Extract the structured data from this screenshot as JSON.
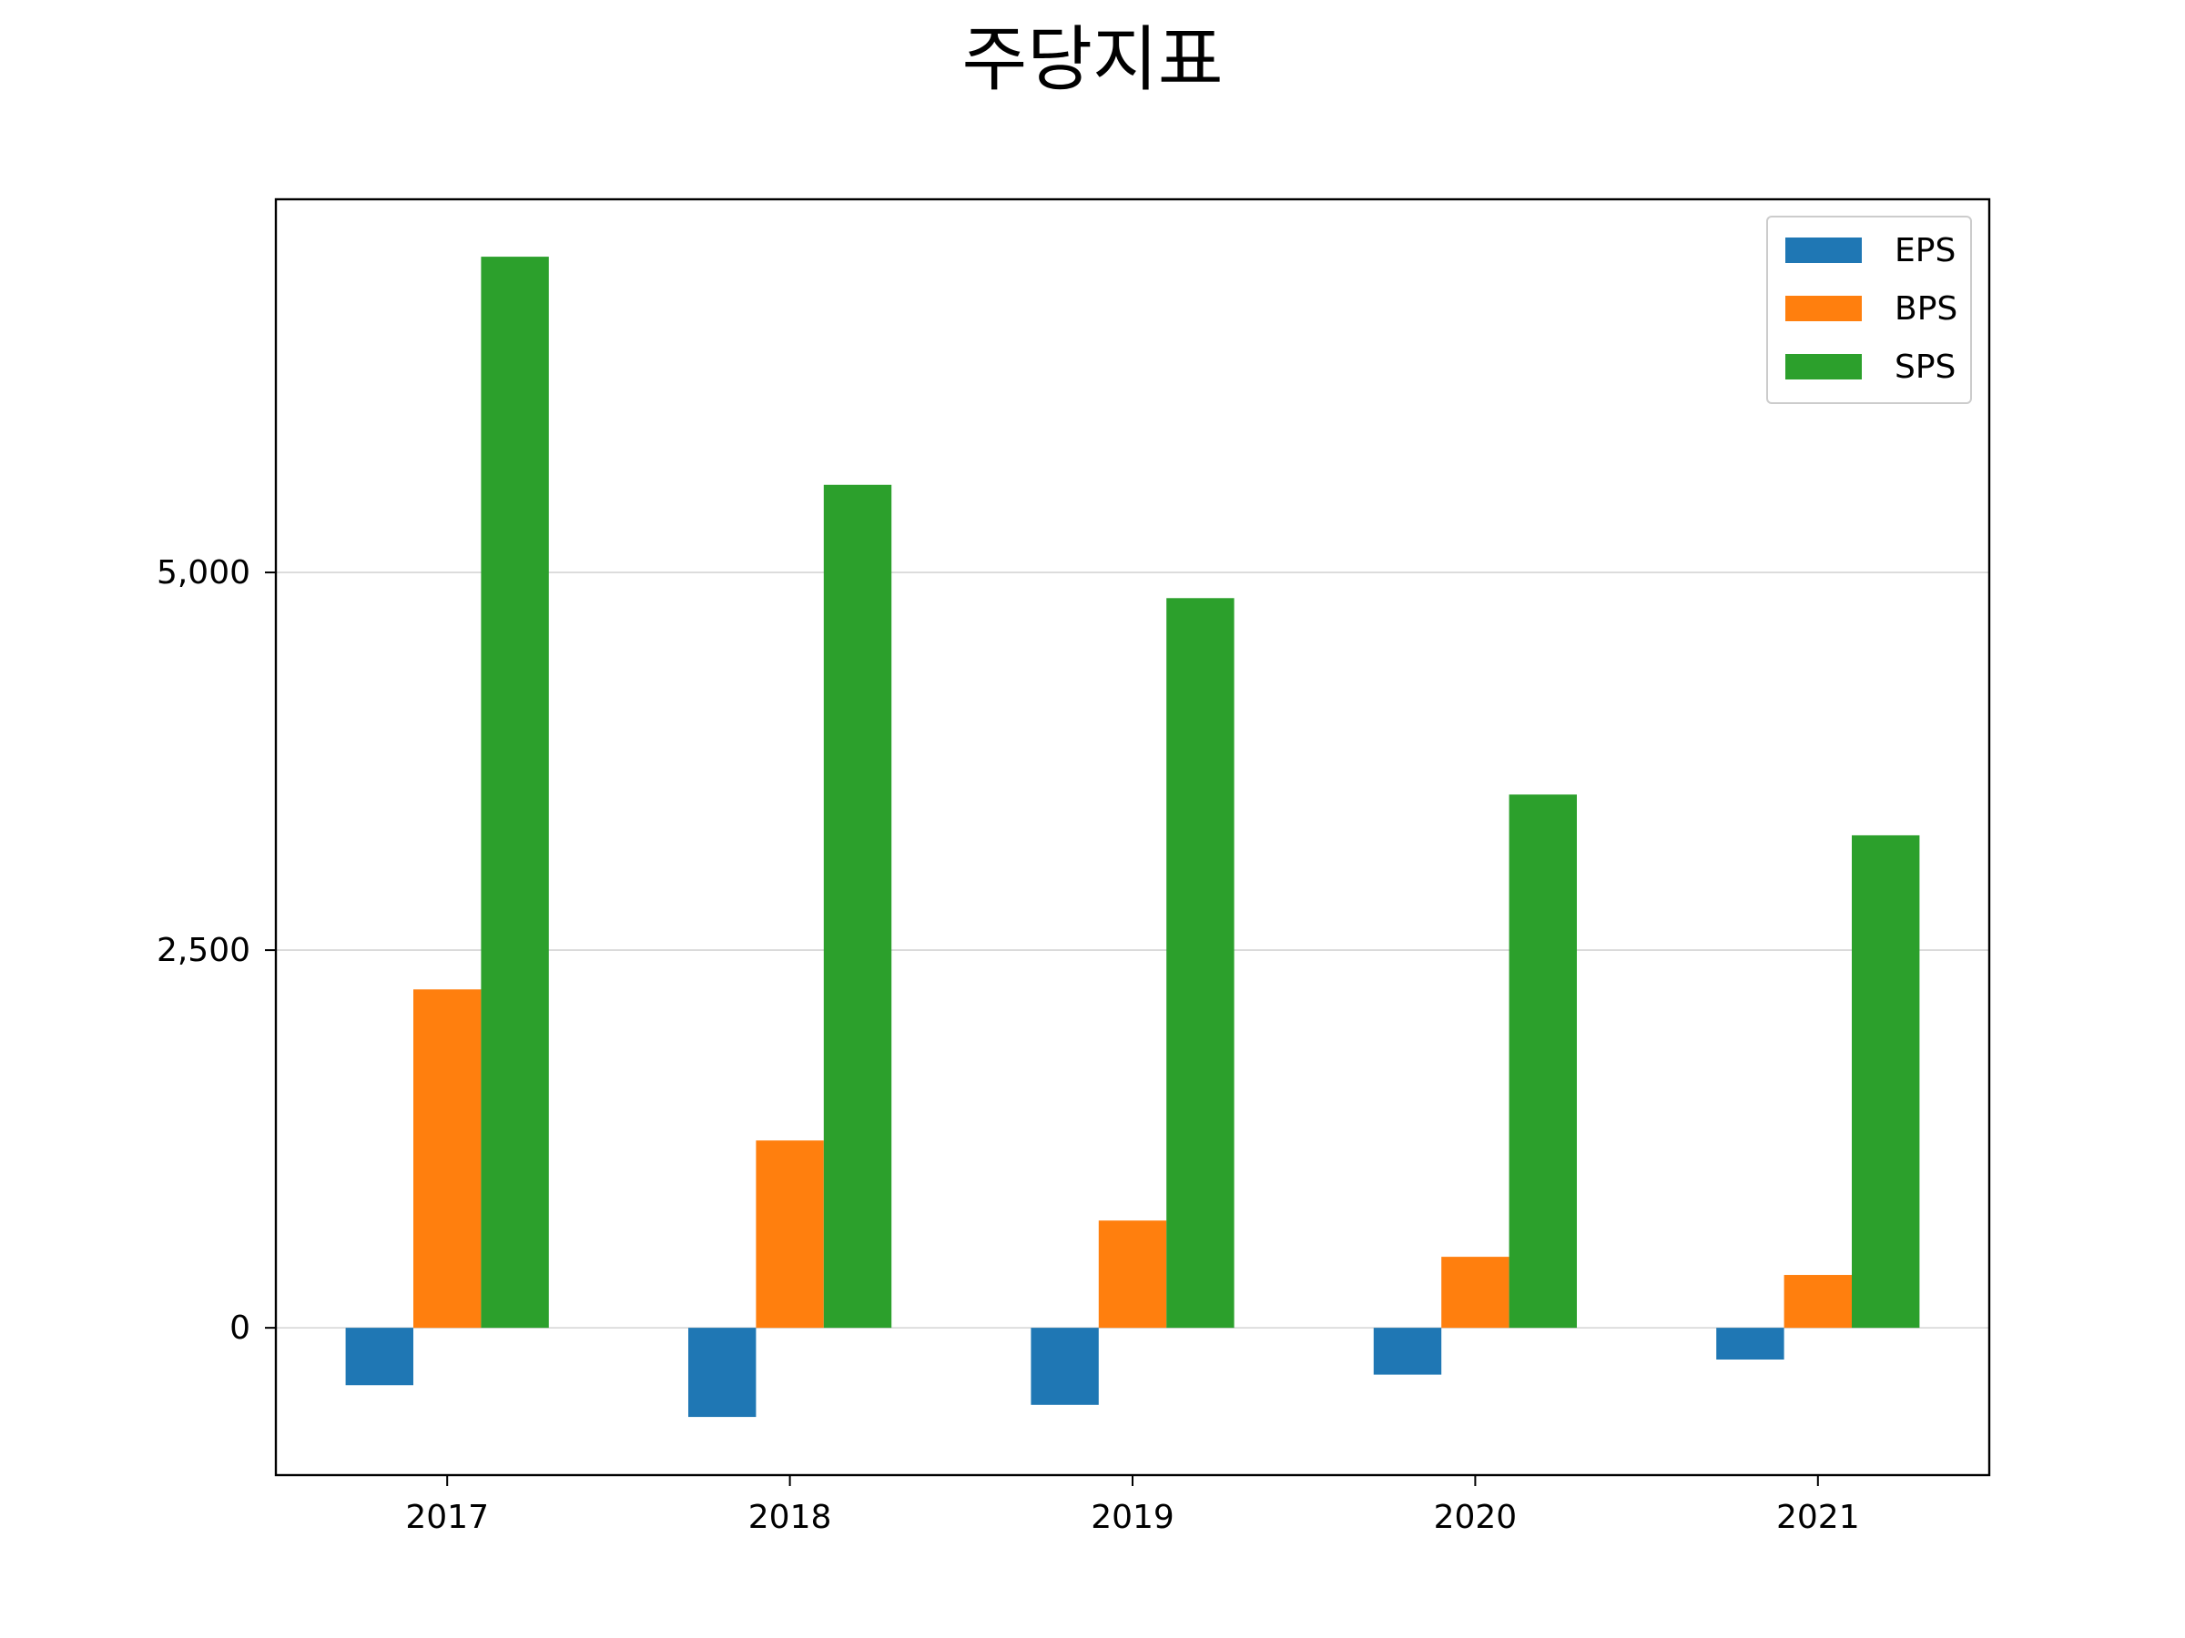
{
  "chart_data": {
    "type": "bar",
    "title": "주당지표",
    "xlabel": "",
    "ylabel": "",
    "categories": [
      "2017",
      "2018",
      "2019",
      "2020",
      "2021"
    ],
    "series": [
      {
        "name": "EPS",
        "color": "#1f77b4",
        "values": [
          -380,
          -590,
          -510,
          -310,
          -210
        ]
      },
      {
        "name": "BPS",
        "color": "#ff7f0e",
        "values": [
          2240,
          1240,
          710,
          470,
          350
        ]
      },
      {
        "name": "SPS",
        "color": "#2ca02c",
        "values": [
          7090,
          5580,
          4830,
          3530,
          3260
        ]
      }
    ],
    "ylim": [
      -975,
      7470
    ],
    "yticks": [
      0,
      2500,
      5000
    ],
    "ytick_labels": [
      "0",
      "2,500",
      "5,000"
    ],
    "grid": "y",
    "legend_location": "top-right"
  }
}
